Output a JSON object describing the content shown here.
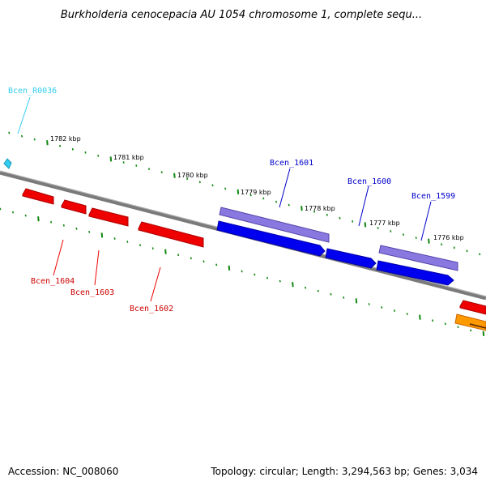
{
  "title": "Burkholderia cenocepacia AU 1054 chromosome 1, complete sequ...",
  "footer": {
    "accession": "Accession: NC_008060",
    "summary": "Topology: circular; Length: 3,294,563 bp; Genes: 3,034"
  },
  "ticks": [
    "1782 kbp",
    "1781 kbp",
    "1780 kbp",
    "1779 kbp",
    "1778 kbp",
    "1777 kbp",
    "1776 kbp"
  ],
  "gene_labels": {
    "rna": "Bcen_R0036",
    "forward": [
      "Bcen_1601",
      "Bcen_1600",
      "Bcen_1599"
    ],
    "reverse": [
      "Bcen_1604",
      "Bcen_1603",
      "Bcen_1602"
    ]
  },
  "colors": {
    "backbone": "#808080",
    "cds_forward": "#0000ee",
    "cds_forward_dark": "#0000aa",
    "cds_shadow": "#7b68d8",
    "cds_reverse": "#ee0000",
    "cds_reverse_dark": "#aa0000",
    "rna": "#33ccee",
    "orange_feature": "#ff9900",
    "tick": "#118811"
  }
}
